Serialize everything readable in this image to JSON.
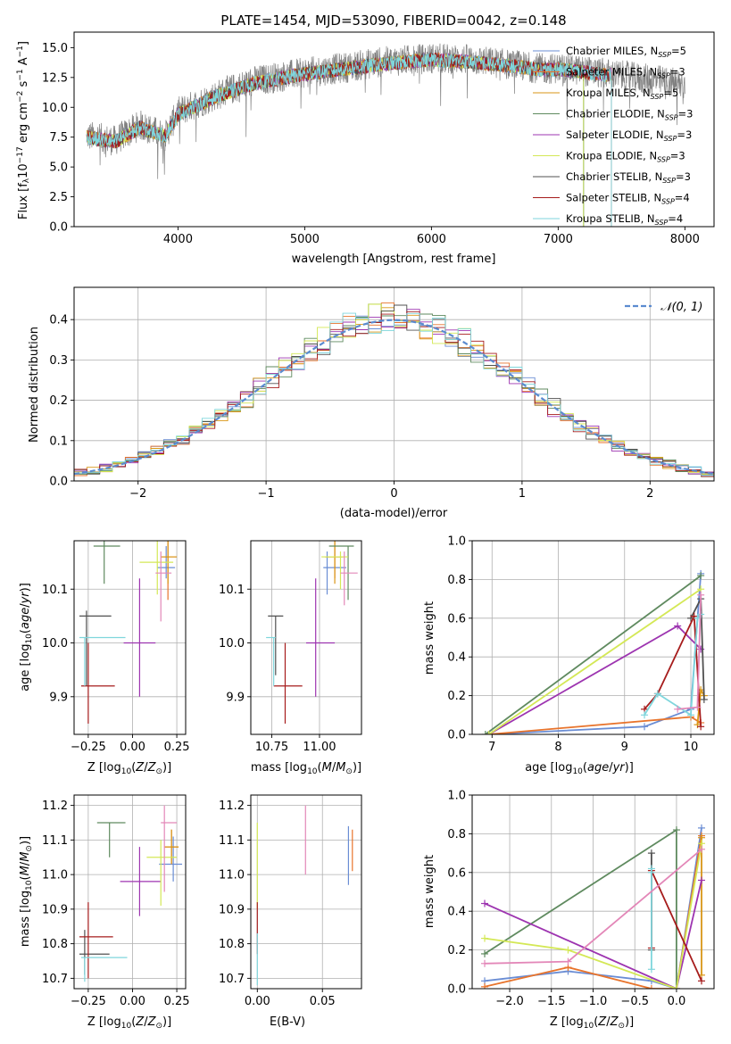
{
  "chart_data": [
    {
      "id": "spectrum",
      "type": "line",
      "title": "PLATE=1454, MJD=53090, FIBERID=0042, z=0.148",
      "xlabel": "wavelength [Angstrom, rest frame]",
      "ylabel": "Flux [fλ 10⁻¹⁷ erg cm⁻² s⁻¹ A⁻¹]",
      "xlim": [
        3180,
        8230
      ],
      "ylim": [
        0,
        16.3
      ],
      "xticks": [
        4000,
        5000,
        6000,
        7000,
        8000
      ],
      "yticks": [
        0.0,
        2.5,
        5.0,
        7.5,
        10.0,
        12.5,
        15.0
      ],
      "data_color": "#808080",
      "data_keypoints": {
        "x": [
          3280,
          3500,
          3700,
          3900,
          4000,
          4300,
          4600,
          5000,
          5300,
          5600,
          6000,
          6300,
          6600,
          6900,
          7000,
          7400,
          7600,
          7900,
          8000
        ],
        "y": [
          7.6,
          7.2,
          8.5,
          7.6,
          9.6,
          11.0,
          12.2,
          12.9,
          13.3,
          13.8,
          14.1,
          14.0,
          13.6,
          13.2,
          13.3,
          12.8,
          12.5,
          12.1,
          11.9
        ]
      },
      "model_keypoints": {
        "x": [
          3280,
          3500,
          3700,
          3900,
          4000,
          4300,
          4600,
          5000,
          5300,
          5600,
          6000,
          6300,
          6600,
          6900,
          7000,
          7400
        ],
        "y": [
          7.5,
          7.1,
          8.3,
          7.6,
          9.4,
          10.9,
          12.0,
          12.8,
          13.2,
          13.6,
          14.0,
          13.8,
          13.5,
          13.1,
          13.2,
          12.7
        ]
      },
      "model_end_x": [
        7200,
        7420,
        7420,
        7200,
        7420,
        7200,
        7420,
        7420,
        7420
      ],
      "legend_loc": "upper right",
      "grid": false,
      "series": [
        {
          "name": "Chabrier MILES, N_SSP=5",
          "color": "#6a8dd4"
        },
        {
          "name": "Salpeter MILES, N_SSP=3",
          "color": "#e8742c"
        },
        {
          "name": "Kroupa MILES, N_SSP=5",
          "color": "#d99616"
        },
        {
          "name": "Chabrier ELODIE, N_SSP=3",
          "color": "#5f8a5f"
        },
        {
          "name": "Salpeter ELODIE, N_SSP=3",
          "color": "#9d34b0"
        },
        {
          "name": "Kroupa ELODIE, N_SSP=3",
          "color": "#d4e856"
        },
        {
          "name": "Chabrier STELIB, N_SSP=3",
          "color": "#505050"
        },
        {
          "name": "Salpeter STELIB, N_SSP=4",
          "color": "#a61c1c"
        },
        {
          "name": "Kroupa STELIB, N_SSP=4",
          "color": "#7fd6dc"
        }
      ]
    },
    {
      "id": "residuals",
      "type": "line",
      "xlabel": "(data-model)/error",
      "ylabel": "Normed distribution",
      "xlim": [
        -2.5,
        2.5
      ],
      "ylim": [
        0,
        0.48
      ],
      "xticks": [
        -2,
        -1,
        0,
        1,
        2
      ],
      "yticks": [
        0.0,
        0.1,
        0.2,
        0.3,
        0.4
      ],
      "grid": true,
      "legend_loc": "upper right",
      "normal_label": "𝒩(0, 1)",
      "normal_color": "#5b8bd0",
      "bin_width": 0.1,
      "series_colors": [
        "#6a8dd4",
        "#e8742c",
        "#d99616",
        "#5f8a5f",
        "#9d34b0",
        "#d4e856",
        "#505050",
        "#a61c1c",
        "#7fd6dc"
      ]
    },
    {
      "id": "age_vs_Z",
      "type": "scatter",
      "xlabel": "Z [log10(Z/Z⊙)]",
      "ylabel": "age  [log10(age/yr)]",
      "xlim": [
        -0.33,
        0.3
      ],
      "ylim": [
        9.83,
        10.19
      ],
      "xticks": [
        -0.25,
        0.0,
        0.25
      ],
      "yticks": [
        9.9,
        10.0,
        10.1
      ],
      "grid": true,
      "points": [
        {
          "x": 0.19,
          "y": 10.14,
          "xerr": [
            0.05,
            0.05
          ],
          "yerr": [
            0.02,
            0.04
          ],
          "color": "#6a8dd4"
        },
        {
          "x": 0.2,
          "y": 10.16,
          "xerr": [
            0.04,
            0.05
          ],
          "yerr": [
            0.08,
            0.04
          ],
          "color": "#e8742c"
        },
        {
          "x": 0.2,
          "y": 10.16,
          "xerr": [
            0.04,
            0.05
          ],
          "yerr": [
            0.05,
            0.04
          ],
          "color": "#d99616"
        },
        {
          "x": -0.16,
          "y": 10.18,
          "xerr": [
            0.06,
            0.09
          ],
          "yerr": [
            0.07,
            0.03
          ],
          "color": "#5f8a5f"
        },
        {
          "x": 0.04,
          "y": 10.0,
          "xerr": [
            0.09,
            0.09
          ],
          "yerr": [
            0.1,
            0.12
          ],
          "color": "#9d34b0"
        },
        {
          "x": 0.14,
          "y": 10.15,
          "xerr": [
            0.1,
            0.09
          ],
          "yerr": [
            0.06,
            0.04
          ],
          "color": "#d4e856"
        },
        {
          "x": -0.26,
          "y": 10.05,
          "xerr": [
            0.04,
            0.14
          ],
          "yerr": [
            0.13,
            0.01
          ],
          "color": "#505050"
        },
        {
          "x": -0.25,
          "y": 9.92,
          "xerr": [
            0.04,
            0.15
          ],
          "yerr": [
            0.07,
            0.08
          ],
          "color": "#a61c1c"
        },
        {
          "x": -0.27,
          "y": 10.01,
          "xerr": [
            0.03,
            0.23
          ],
          "yerr": [
            0.09,
            0.0
          ],
          "color": "#7fd6dc"
        },
        {
          "x": 0.16,
          "y": 10.13,
          "xerr": [
            0.03,
            0.06
          ],
          "yerr": [
            0.09,
            0.04
          ],
          "color": "#e387b8"
        }
      ]
    },
    {
      "id": "age_vs_mass",
      "type": "scatter",
      "xlabel": "mass [log10(M/M⊙)]",
      "ylabel": "",
      "xlim": [
        10.64,
        11.22
      ],
      "ylim": [
        9.83,
        10.19
      ],
      "xticks": [
        10.75,
        11.0
      ],
      "yticks": [
        9.9,
        10.0,
        10.1
      ],
      "grid": true,
      "points": [
        {
          "x": 11.04,
          "y": 10.14,
          "xerr": [
            0.02,
            0.1
          ],
          "yerr": [
            0.05,
            0.03
          ],
          "color": "#6a8dd4"
        },
        {
          "x": 11.08,
          "y": 10.16,
          "xerr": [
            0.05,
            0.05
          ],
          "yerr": [
            0.04,
            0.04
          ],
          "color": "#e8742c"
        },
        {
          "x": 11.08,
          "y": 10.16,
          "xerr": [
            0.05,
            0.04
          ],
          "yerr": [
            0.05,
            0.04
          ],
          "color": "#d99616"
        },
        {
          "x": 11.15,
          "y": 10.18,
          "xerr": [
            0.1,
            0.03
          ],
          "yerr": [
            0.1,
            0.0
          ],
          "color": "#5f8a5f"
        },
        {
          "x": 10.98,
          "y": 10.0,
          "xerr": [
            0.05,
            0.1
          ],
          "yerr": [
            0.1,
            0.12
          ],
          "color": "#9d34b0"
        },
        {
          "x": 11.11,
          "y": 10.16,
          "xerr": [
            0.1,
            0.04
          ],
          "yerr": [
            0.06,
            0.01
          ],
          "color": "#d4e856"
        },
        {
          "x": 10.77,
          "y": 10.05,
          "xerr": [
            0.04,
            0.04
          ],
          "yerr": [
            0.11,
            0.0
          ],
          "color": "#505050"
        },
        {
          "x": 10.82,
          "y": 9.92,
          "xerr": [
            0.06,
            0.09
          ],
          "yerr": [
            0.07,
            0.08
          ],
          "color": "#a61c1c"
        },
        {
          "x": 10.76,
          "y": 10.01,
          "xerr": [
            0.04,
            0.01
          ],
          "yerr": [
            0.09,
            0.0
          ],
          "color": "#7fd6dc"
        },
        {
          "x": 11.13,
          "y": 10.13,
          "xerr": [
            0.02,
            0.07
          ],
          "yerr": [
            0.06,
            0.04
          ],
          "color": "#e387b8"
        }
      ]
    },
    {
      "id": "massweight_vs_age",
      "type": "line",
      "xlabel": "age  [log10(age/yr)]",
      "ylabel": "mass weight",
      "xlim": [
        6.7,
        10.35
      ],
      "ylim": [
        0,
        1.0
      ],
      "xticks": [
        7,
        8,
        9,
        10
      ],
      "yticks": [
        0.0,
        0.2,
        0.4,
        0.6,
        0.8,
        1.0
      ],
      "grid": true,
      "series": [
        {
          "color": "#6a8dd4",
          "x": [
            6.95,
            9.3,
            10.0,
            10.15
          ],
          "y": [
            0.0,
            0.04,
            0.13,
            0.83
          ]
        },
        {
          "color": "#e8742c",
          "x": [
            6.95,
            10.0,
            10.15
          ],
          "y": [
            0.0,
            0.09,
            0.06
          ]
        },
        {
          "color": "#d99616",
          "x": [
            10.1,
            10.15,
            10.2
          ],
          "y": [
            0.05,
            0.23,
            0.2
          ]
        },
        {
          "color": "#5f8a5f",
          "x": [
            6.9,
            10.15
          ],
          "y": [
            0.0,
            0.82
          ]
        },
        {
          "color": "#9d34b0",
          "x": [
            6.95,
            9.8,
            10.15
          ],
          "y": [
            0.0,
            0.56,
            0.44
          ]
        },
        {
          "color": "#d4e856",
          "x": [
            6.95,
            10.15
          ],
          "y": [
            0.0,
            0.75
          ]
        },
        {
          "color": "#505050",
          "x": [
            10.0,
            10.15,
            10.2
          ],
          "y": [
            0.6,
            0.7,
            0.18
          ]
        },
        {
          "color": "#a61c1c",
          "x": [
            9.3,
            9.5,
            10.05,
            10.15
          ],
          "y": [
            0.13,
            0.21,
            0.61,
            0.04
          ]
        },
        {
          "color": "#7fd6dc",
          "x": [
            9.3,
            9.5,
            10.0,
            10.1,
            10.15
          ],
          "y": [
            0.1,
            0.21,
            0.1,
            0.6,
            0.62
          ]
        },
        {
          "color": "#e387b8",
          "x": [
            9.8,
            10.1,
            10.15
          ],
          "y": [
            0.13,
            0.14,
            0.72
          ]
        }
      ]
    },
    {
      "id": "mass_vs_Z",
      "type": "scatter",
      "xlabel": "Z [log10(Z/Z⊙)]",
      "ylabel": "mass [log10(M/M⊙)]",
      "xlim": [
        -0.33,
        0.3
      ],
      "ylim": [
        10.67,
        11.23
      ],
      "xticks": [
        -0.25,
        0.0,
        0.25
      ],
      "yticks": [
        10.7,
        10.8,
        10.9,
        11.0,
        11.1,
        11.2
      ],
      "grid": true,
      "points": [
        {
          "x": 0.23,
          "y": 11.03,
          "xerr": [
            0.08,
            0.05
          ],
          "yerr": [
            0.05,
            0.08
          ],
          "color": "#6a8dd4"
        },
        {
          "x": 0.22,
          "y": 11.08,
          "xerr": [
            0.04,
            0.04
          ],
          "yerr": [
            0.05,
            0.05
          ],
          "color": "#e8742c"
        },
        {
          "x": 0.22,
          "y": 11.08,
          "xerr": [
            0.04,
            0.04
          ],
          "yerr": [
            0.05,
            0.05
          ],
          "color": "#d99616"
        },
        {
          "x": -0.13,
          "y": 11.15,
          "xerr": [
            0.07,
            0.09
          ],
          "yerr": [
            0.1,
            0.0
          ],
          "color": "#5f8a5f"
        },
        {
          "x": 0.04,
          "y": 10.98,
          "xerr": [
            0.11,
            0.12
          ],
          "yerr": [
            0.1,
            0.1
          ],
          "color": "#9d34b0"
        },
        {
          "x": 0.16,
          "y": 11.05,
          "xerr": [
            0.08,
            0.09
          ],
          "yerr": [
            0.14,
            0.05
          ],
          "color": "#d4e856"
        },
        {
          "x": -0.27,
          "y": 10.77,
          "xerr": [
            0.03,
            0.14
          ],
          "yerr": [
            0.06,
            0.07
          ],
          "color": "#505050"
        },
        {
          "x": -0.25,
          "y": 10.82,
          "xerr": [
            0.05,
            0.14
          ],
          "yerr": [
            0.12,
            0.1
          ],
          "color": "#a61c1c"
        },
        {
          "x": -0.27,
          "y": 10.76,
          "xerr": [
            0.02,
            0.24
          ],
          "yerr": [
            0.07,
            0.0
          ],
          "color": "#7fd6dc"
        },
        {
          "x": 0.18,
          "y": 11.15,
          "xerr": [
            0.02,
            0.07
          ],
          "yerr": [
            0.2,
            0.05
          ],
          "color": "#e387b8"
        }
      ]
    },
    {
      "id": "mass_vs_EBV",
      "type": "scatter",
      "xlabel": "E(B-V)",
      "ylabel": "",
      "xlim": [
        -0.005,
        0.08
      ],
      "ylim": [
        10.67,
        11.23
      ],
      "xticks": [
        0.0,
        0.05
      ],
      "yticks": [
        10.7,
        10.8,
        10.9,
        11.0,
        11.1,
        11.2
      ],
      "grid": true,
      "points": [
        {
          "x": 0.07,
          "y": 11.05,
          "xerr": [
            0.0,
            0.0
          ],
          "yerr": [
            0.08,
            0.09
          ],
          "color": "#6a8dd4"
        },
        {
          "x": 0.073,
          "y": 11.06,
          "xerr": [
            0.0,
            0.0
          ],
          "yerr": [
            0.05,
            0.07
          ],
          "color": "#e8742c"
        },
        {
          "x": 0.0,
          "y": 11.0,
          "xerr": [
            0.0,
            0.0
          ],
          "yerr": [
            0.1,
            0.15
          ],
          "color": "#d4e856"
        },
        {
          "x": 0.0,
          "y": 10.85,
          "xerr": [
            0.0,
            0.0
          ],
          "yerr": [
            0.08,
            0.07
          ],
          "color": "#a61c1c"
        },
        {
          "x": 0.0,
          "y": 10.78,
          "xerr": [
            0.0,
            0.0
          ],
          "yerr": [
            0.1,
            0.05
          ],
          "color": "#7fd6dc"
        },
        {
          "x": 0.037,
          "y": 11.1,
          "xerr": [
            0.0,
            0.0
          ],
          "yerr": [
            0.1,
            0.1
          ],
          "color": "#e387b8"
        }
      ]
    },
    {
      "id": "massweight_vs_Z",
      "type": "line",
      "xlabel": "Z [log10(Z/Z⊙)]",
      "ylabel": "mass weight",
      "xlim": [
        -2.45,
        0.45
      ],
      "ylim": [
        0,
        1.0
      ],
      "xticks": [
        -2.0,
        -1.5,
        -1.0,
        -0.5,
        0.0
      ],
      "yticks": [
        0.0,
        0.2,
        0.4,
        0.6,
        0.8,
        1.0
      ],
      "grid": true,
      "series": [
        {
          "color": "#6a8dd4",
          "x": [
            -2.3,
            -1.3,
            -0.3,
            0.0,
            0.3
          ],
          "y": [
            0.04,
            0.09,
            0.04,
            0.0,
            0.83
          ]
        },
        {
          "color": "#e8742c",
          "x": [
            -2.3,
            -1.3,
            -0.3,
            0.0,
            0.3
          ],
          "y": [
            0.01,
            0.11,
            0.0,
            0.0,
            0.79
          ]
        },
        {
          "color": "#d99616",
          "x": [
            0.3,
            0.3
          ],
          "y": [
            0.07,
            0.78
          ]
        },
        {
          "color": "#5f8a5f",
          "x": [
            -2.3,
            0.0,
            0.0
          ],
          "y": [
            0.18,
            0.82,
            0.0
          ]
        },
        {
          "color": "#9d34b0",
          "x": [
            -2.3,
            0.0,
            0.3
          ],
          "y": [
            0.44,
            0.0,
            0.56
          ]
        },
        {
          "color": "#d4e856",
          "x": [
            -2.3,
            -1.3,
            0.0,
            0.3
          ],
          "y": [
            0.26,
            0.2,
            0.0,
            0.75
          ]
        },
        {
          "color": "#505050",
          "x": [
            -0.3,
            -0.3
          ],
          "y": [
            0.2,
            0.7
          ]
        },
        {
          "color": "#a61c1c",
          "x": [
            -0.3,
            -0.3,
            0.3
          ],
          "y": [
            0.21,
            0.61,
            0.04
          ]
        },
        {
          "color": "#7fd6dc",
          "x": [
            -0.3,
            -0.3,
            -0.3
          ],
          "y": [
            0.1,
            0.62,
            0.6
          ]
        },
        {
          "color": "#e387b8",
          "x": [
            -2.3,
            -1.3,
            0.3
          ],
          "y": [
            0.13,
            0.14,
            0.72
          ]
        }
      ]
    }
  ]
}
